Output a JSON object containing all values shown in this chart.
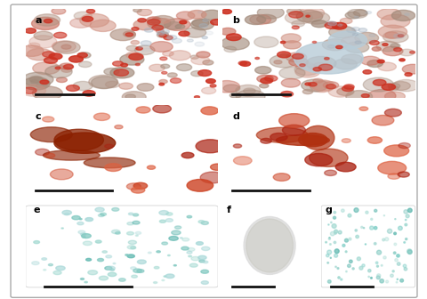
{
  "bg_color": "#f5f5f5",
  "panel_border_color": "#888888",
  "labels": [
    "a",
    "b",
    "c",
    "d",
    "e",
    "f",
    "g"
  ],
  "row1_colors": {
    "main_a": [
      "#c97060",
      "#b8a090",
      "#a09080"
    ],
    "main_b": [
      "#c87060",
      "#b0c0d0",
      "#a09090"
    ],
    "inset_a": "#b0b8c0",
    "inset_b": "#708090"
  },
  "row2_colors": {
    "main_c": "#8b2000",
    "main_d": "#b03010",
    "inset_c": "#c8c0a8",
    "inset_d": "#e0ddd8"
  },
  "row3_colors": {
    "panel_e": "#a8d8d8",
    "panel_f": "#f0f0f0",
    "panel_g": "#70c8c0"
  },
  "scalebar_color": "#111111",
  "label_fontsize": 8,
  "outer_bg": "#ffffff"
}
